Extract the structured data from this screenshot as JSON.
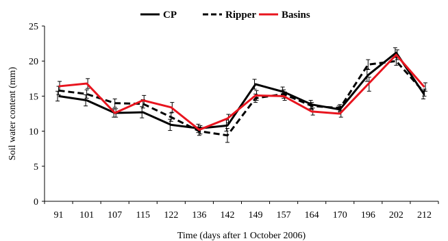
{
  "chart_data": {
    "type": "line",
    "title": "",
    "xlabel": "Time (days after 1 October 2006)",
    "ylabel": "Soil water content (mm)",
    "categories": [
      "91",
      "101",
      "107",
      "115",
      "122",
      "136",
      "142",
      "149",
      "157",
      "164",
      "170",
      "196",
      "202",
      "212"
    ],
    "ylim": [
      0,
      25
    ],
    "yticks": [
      0,
      5,
      10,
      15,
      20,
      25
    ],
    "legend_position": "top-center",
    "error_bars": true,
    "series": [
      {
        "name": "CP",
        "color": "#000000",
        "dash": "solid",
        "values": [
          15.0,
          14.4,
          12.6,
          12.7,
          10.9,
          10.4,
          10.8,
          16.7,
          15.6,
          13.8,
          13.1,
          18.0,
          21.2,
          15.2
        ],
        "errors": [
          0.7,
          0.8,
          0.6,
          0.8,
          0.8,
          0.6,
          0.8,
          0.7,
          0.7,
          0.6,
          0.5,
          0.9,
          0.7,
          0.6
        ]
      },
      {
        "name": "Ripper",
        "color": "#000000",
        "dash": "dashed",
        "values": [
          15.8,
          15.3,
          14.0,
          13.9,
          12.0,
          10.0,
          9.4,
          14.7,
          15.3,
          13.6,
          13.3,
          19.5,
          20.0,
          15.5
        ],
        "errors": [
          0.6,
          0.6,
          0.6,
          0.6,
          0.6,
          0.6,
          1.0,
          0.6,
          0.6,
          0.5,
          0.5,
          0.7,
          0.6,
          0.5
        ]
      },
      {
        "name": "Basins",
        "color": "#e8141e",
        "dash": "solid",
        "values": [
          16.4,
          16.8,
          12.6,
          14.4,
          13.4,
          10.2,
          11.8,
          15.1,
          15.0,
          12.8,
          12.5,
          16.7,
          20.9,
          16.3
        ],
        "errors": [
          0.7,
          0.7,
          0.6,
          0.7,
          0.7,
          0.6,
          0.6,
          0.7,
          0.6,
          0.5,
          0.5,
          1.0,
          0.7,
          0.6
        ]
      }
    ]
  }
}
